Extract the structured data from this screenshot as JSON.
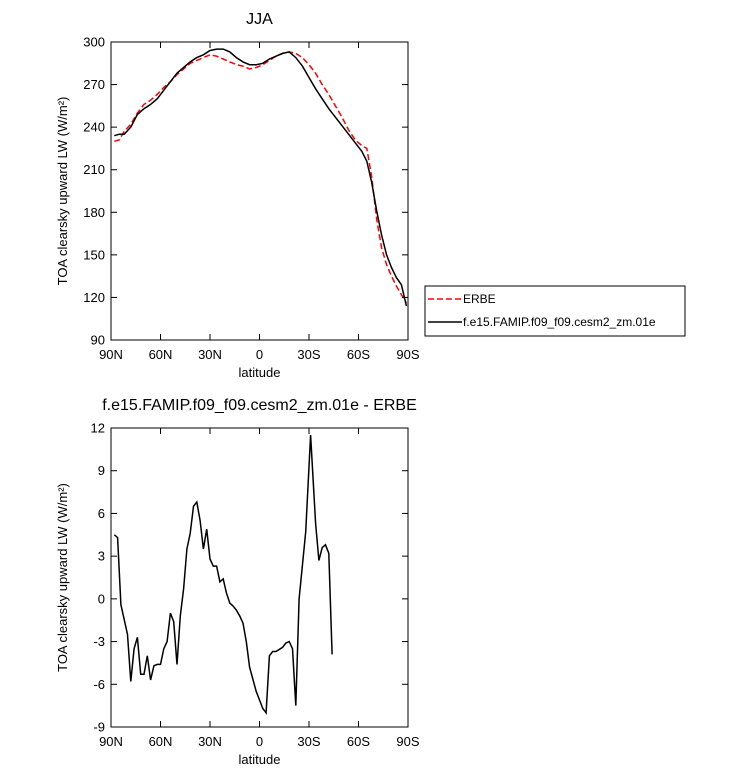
{
  "chart_data": [
    {
      "type": "line",
      "title": "JJA",
      "xlabel": "latitude",
      "ylabel": "TOA clearsky upward LW (W/m²)",
      "xlim": [
        90,
        -90
      ],
      "ylim": [
        90,
        300
      ],
      "x_ticks": [
        90,
        60,
        30,
        0,
        -30,
        -60,
        -90
      ],
      "x_tick_labels": [
        "90N",
        "60N",
        "30N",
        "0",
        "30S",
        "60S",
        "90S"
      ],
      "y_ticks": [
        90,
        120,
        150,
        180,
        210,
        240,
        270,
        300
      ],
      "y_tick_labels": [
        "90",
        "120",
        "150",
        "180",
        "210",
        "240",
        "270",
        "300"
      ],
      "legend_position": "right",
      "series": [
        {
          "name": "ERBE",
          "color": "#ff0000",
          "dash": "dashed",
          "points": [
            [
              88,
              230
            ],
            [
              85,
              231
            ],
            [
              82,
              237
            ],
            [
              78,
              242
            ],
            [
              74,
              250
            ],
            [
              70,
              256
            ],
            [
              66,
              259
            ],
            [
              62,
              263
            ],
            [
              58,
              268
            ],
            [
              54,
              272
            ],
            [
              50,
              277
            ],
            [
              46,
              281
            ],
            [
              42,
              285
            ],
            [
              38,
              287
            ],
            [
              34,
              289
            ],
            [
              30,
              291
            ],
            [
              26,
              290
            ],
            [
              22,
              288
            ],
            [
              18,
              286
            ],
            [
              14,
              284
            ],
            [
              10,
              283
            ],
            [
              6,
              281
            ],
            [
              2,
              282
            ],
            [
              -2,
              284
            ],
            [
              -6,
              287
            ],
            [
              -10,
              290
            ],
            [
              -14,
              292
            ],
            [
              -18,
              293
            ],
            [
              -22,
              292
            ],
            [
              -26,
              289
            ],
            [
              -30,
              284
            ],
            [
              -34,
              278
            ],
            [
              -38,
              270
            ],
            [
              -42,
              263
            ],
            [
              -46,
              255
            ],
            [
              -50,
              247
            ],
            [
              -54,
              238
            ],
            [
              -58,
              231
            ],
            [
              -62,
              227
            ],
            [
              -65,
              225
            ],
            [
              -68,
              205
            ],
            [
              -71,
              175
            ],
            [
              -74,
              155
            ],
            [
              -77,
              143
            ],
            [
              -80,
              135
            ],
            [
              -83,
              128
            ],
            [
              -86,
              122
            ],
            [
              -89,
              116
            ]
          ]
        },
        {
          "name": "f.e15.FAMIP.f09_f09.cesm2_zm.01e",
          "color": "#000000",
          "dash": "solid",
          "points": [
            [
              88,
              234
            ],
            [
              85,
              235
            ],
            [
              82,
              235
            ],
            [
              78,
              240
            ],
            [
              74,
              249
            ],
            [
              70,
              253
            ],
            [
              66,
              256
            ],
            [
              62,
              260
            ],
            [
              58,
              266
            ],
            [
              54,
              272
            ],
            [
              50,
              278
            ],
            [
              46,
              282
            ],
            [
              42,
              286
            ],
            [
              38,
              289
            ],
            [
              34,
              291
            ],
            [
              30,
              294
            ],
            [
              26,
              295
            ],
            [
              22,
              295
            ],
            [
              18,
              293
            ],
            [
              14,
              289
            ],
            [
              10,
              286
            ],
            [
              6,
              284
            ],
            [
              2,
              284
            ],
            [
              -2,
              285
            ],
            [
              -6,
              288
            ],
            [
              -10,
              290
            ],
            [
              -14,
              292
            ],
            [
              -18,
              293
            ],
            [
              -22,
              289
            ],
            [
              -26,
              283
            ],
            [
              -30,
              275
            ],
            [
              -34,
              267
            ],
            [
              -38,
              260
            ],
            [
              -42,
              253
            ],
            [
              -46,
              247
            ],
            [
              -50,
              241
            ],
            [
              -54,
              235
            ],
            [
              -58,
              229
            ],
            [
              -62,
              223
            ],
            [
              -65,
              216
            ],
            [
              -68,
              201
            ],
            [
              -71,
              181
            ],
            [
              -74,
              164
            ],
            [
              -77,
              150
            ],
            [
              -80,
              141
            ],
            [
              -83,
              134
            ],
            [
              -86,
              129
            ],
            [
              -89,
              114
            ]
          ]
        }
      ]
    },
    {
      "type": "line",
      "title": "f.e15.FAMIP.f09_f09.cesm2_zm.01e - ERBE",
      "xlabel": "latitude",
      "ylabel": "TOA clearsky upward LW (W/m²)",
      "xlim": [
        90,
        -90
      ],
      "ylim": [
        -9,
        12
      ],
      "x_ticks": [
        90,
        60,
        30,
        0,
        -30,
        -60,
        -90
      ],
      "x_tick_labels": [
        "90N",
        "60N",
        "30N",
        "0",
        "30S",
        "60S",
        "90S"
      ],
      "y_ticks": [
        -9,
        -6,
        -3,
        0,
        3,
        6,
        9,
        12
      ],
      "y_tick_labels": [
        "-9",
        "-6",
        "-3",
        "0",
        "3",
        "6",
        "9",
        "12"
      ],
      "series": [
        {
          "color": "#000000",
          "dash": "solid",
          "points": [
            [
              88,
              4.5
            ],
            [
              86,
              4.3
            ],
            [
              84,
              -0.4
            ],
            [
              80,
              -2.5
            ],
            [
              78,
              -5.8
            ],
            [
              76,
              -3.5
            ],
            [
              74,
              -2.7
            ],
            [
              72,
              -5.3
            ],
            [
              70,
              -5.3
            ],
            [
              68,
              -4.0
            ],
            [
              66,
              -5.7
            ],
            [
              64,
              -4.7
            ],
            [
              62,
              -4.6
            ],
            [
              60,
              -4.6
            ],
            [
              58,
              -3.5
            ],
            [
              56,
              -3.0
            ],
            [
              54,
              -1.0
            ],
            [
              52,
              -1.6
            ],
            [
              50,
              -4.6
            ],
            [
              48,
              -1.2
            ],
            [
              46,
              0.7
            ],
            [
              44,
              3.5
            ],
            [
              42,
              4.6
            ],
            [
              40,
              6.5
            ],
            [
              38,
              6.8
            ],
            [
              36,
              5.5
            ],
            [
              34,
              3.5
            ],
            [
              32,
              4.9
            ],
            [
              30,
              2.8
            ],
            [
              28,
              2.3
            ],
            [
              26,
              2.3
            ],
            [
              24,
              1.2
            ],
            [
              22,
              1.4
            ],
            [
              20,
              0.4
            ],
            [
              18,
              -0.3
            ],
            [
              16,
              -0.5
            ],
            [
              14,
              -0.8
            ],
            [
              12,
              -1.2
            ],
            [
              10,
              -1.7
            ],
            [
              8,
              -3.0
            ],
            [
              6,
              -4.8
            ],
            [
              2,
              -6.5
            ],
            [
              -2,
              -7.7
            ],
            [
              -4,
              -8.0
            ],
            [
              -6,
              -4.0
            ],
            [
              -8,
              -3.7
            ],
            [
              -10,
              -3.7
            ],
            [
              -14,
              -3.4
            ],
            [
              -16,
              -3.1
            ],
            [
              -18,
              -3.0
            ],
            [
              -20,
              -3.5
            ],
            [
              -22,
              -7.5
            ],
            [
              -24,
              0.0
            ],
            [
              -28,
              4.7
            ],
            [
              -31,
              11.5
            ],
            [
              -34,
              5.3
            ],
            [
              -36,
              2.7
            ],
            [
              -38,
              3.6
            ],
            [
              -40,
              3.8
            ],
            [
              -42,
              3.2
            ],
            [
              -44,
              -3.9
            ]
          ]
        }
      ]
    }
  ]
}
